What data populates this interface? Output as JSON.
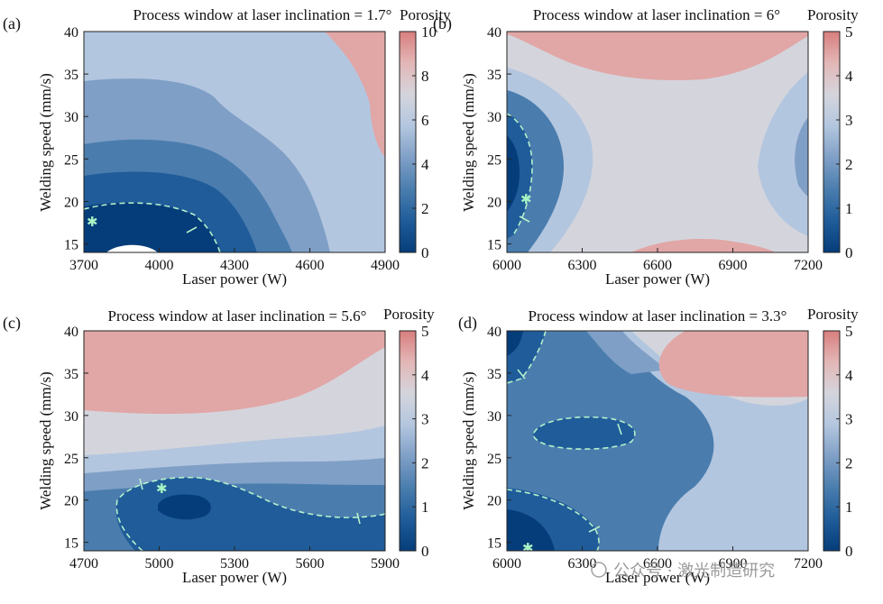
{
  "chart_data": [
    {
      "id": "a",
      "type": "contour",
      "panel_label": "(a)",
      "title": "Process window at laser inclination = 1.7°",
      "xlabel": "Laser power (W)",
      "ylabel": "Welding speed (mm/s)",
      "xlim": [
        3700,
        4900
      ],
      "ylim": [
        14,
        40
      ],
      "xticks": [
        3700,
        4000,
        4300,
        4600,
        4900
      ],
      "yticks": [
        15,
        20,
        25,
        30,
        35,
        40
      ],
      "colorbar": {
        "label": "Porosity",
        "ticks": [
          0,
          2,
          4,
          6,
          8,
          10
        ],
        "range": [
          0,
          10
        ]
      },
      "optimum_marker": {
        "x": 3720,
        "y": 17.6
      },
      "contour_level_dashed": 1
    },
    {
      "id": "b",
      "type": "contour",
      "panel_label": "(b)",
      "title": "Process window at laser inclination = 6°",
      "xlabel": "Laser power (W)",
      "ylabel": "Welding speed (mm/s)",
      "xlim": [
        6000,
        7200
      ],
      "ylim": [
        14,
        40
      ],
      "xticks": [
        6000,
        6300,
        6600,
        6900,
        7200
      ],
      "yticks": [
        15,
        20,
        25,
        30,
        35,
        40
      ],
      "colorbar": {
        "label": "Porosity",
        "ticks": [
          0,
          1,
          2,
          3,
          4,
          5
        ],
        "range": [
          0,
          5
        ]
      },
      "optimum_marker": {
        "x": 6080,
        "y": 20.5
      },
      "contour_level_dashed": 1
    },
    {
      "id": "c",
      "type": "contour",
      "panel_label": "(c)",
      "title": "Process window at laser inclination = 5.6°",
      "xlabel": "Laser power (W)",
      "ylabel": "Welding speed (mm/s)",
      "xlim": [
        4700,
        5900
      ],
      "ylim": [
        14,
        40
      ],
      "xticks": [
        4700,
        5000,
        5300,
        5600,
        5900
      ],
      "yticks": [
        15,
        20,
        25,
        30,
        35,
        40
      ],
      "colorbar": {
        "label": "Porosity",
        "ticks": [
          0,
          1,
          2,
          3,
          4,
          5
        ],
        "range": [
          0,
          5
        ]
      },
      "optimum_marker": {
        "x": 5020,
        "y": 21.5
      },
      "contour_level_dashed": 1
    },
    {
      "id": "d",
      "type": "contour",
      "panel_label": "(d)",
      "title": "Process window at laser inclination = 3.3°",
      "xlabel": "Laser power (W)",
      "ylabel": "Welding speed (mm/s)",
      "xlim": [
        6000,
        7200
      ],
      "ylim": [
        14,
        40
      ],
      "xticks": [
        6000,
        6300,
        6600,
        6900,
        7200
      ],
      "yticks": [
        15,
        20,
        25,
        30,
        35,
        40
      ],
      "colorbar": {
        "label": "Porosity",
        "ticks": [
          0,
          1,
          2,
          3,
          4,
          5
        ],
        "range": [
          0,
          5
        ]
      },
      "optimum_marker": {
        "x": 6080,
        "y": 14.3
      },
      "contour_level_dashed": 1
    }
  ],
  "palette": [
    "#053d7a",
    "#1f5c99",
    "#4a7dae",
    "#7f9fc6",
    "#b3c6df",
    "#d4d5dc",
    "#e1a6a6",
    "#d97e7e"
  ],
  "watermark": "公众号 · 激光制造研究"
}
